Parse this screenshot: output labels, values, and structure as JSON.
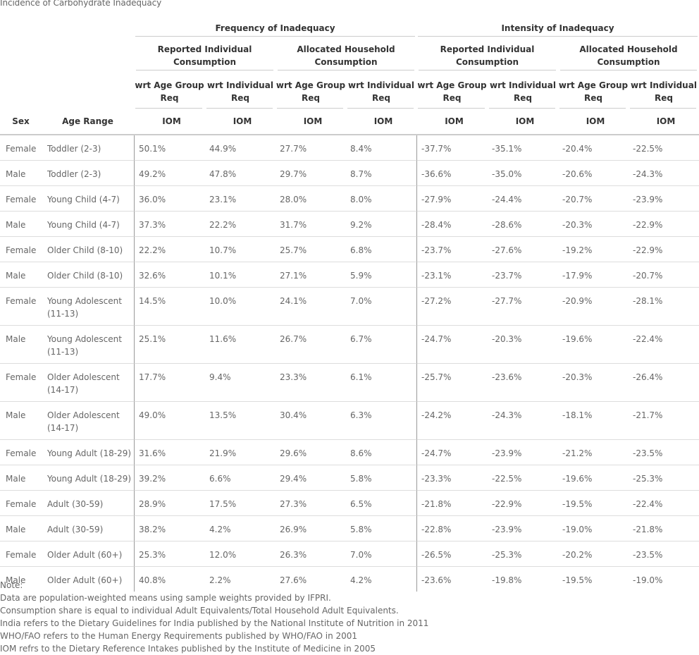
{
  "title": "Incidence of Carbohydrate Inadequacy",
  "header": {
    "group_frequency": "Frequency of Inadequacy",
    "group_intensity": "Intensity of Inadequacy",
    "sub_reported_1": "Reported Individual",
    "sub_reported_2": "Consumption",
    "sub_allocated_1": "Allocated Household",
    "sub_allocated_2": "Consumption",
    "req_age_1": "wrt Age Group",
    "req_age_2": "Req",
    "req_ind_1": "wrt Individual",
    "req_ind_2": "Req",
    "sex": "Sex",
    "age_range": "Age Range",
    "iom": "IOM"
  },
  "rows": [
    {
      "sex": "Female",
      "age": "Toddler (2-3)",
      "v": [
        "50.1%",
        "44.9%",
        "27.7%",
        "8.4%",
        "-37.7%",
        "-35.1%",
        "-20.4%",
        "-22.5%"
      ]
    },
    {
      "sex": "Male",
      "age": "Toddler (2-3)",
      "v": [
        "49.2%",
        "47.8%",
        "29.7%",
        "8.7%",
        "-36.6%",
        "-35.0%",
        "-20.6%",
        "-24.3%"
      ]
    },
    {
      "sex": "Female",
      "age": "Young Child (4-7)",
      "v": [
        "36.0%",
        "23.1%",
        "28.0%",
        "8.0%",
        "-27.9%",
        "-24.4%",
        "-20.7%",
        "-23.9%"
      ]
    },
    {
      "sex": "Male",
      "age": "Young Child (4-7)",
      "v": [
        "37.3%",
        "22.2%",
        "31.7%",
        "9.2%",
        "-28.4%",
        "-28.6%",
        "-20.3%",
        "-22.9%"
      ]
    },
    {
      "sex": "Female",
      "age": "Older Child (8-10)",
      "v": [
        "22.2%",
        "10.7%",
        "25.7%",
        "6.8%",
        "-23.7%",
        "-27.6%",
        "-19.2%",
        "-22.9%"
      ]
    },
    {
      "sex": "Male",
      "age": "Older Child (8-10)",
      "v": [
        "32.6%",
        "10.1%",
        "27.1%",
        "5.9%",
        "-23.1%",
        "-23.7%",
        "-17.9%",
        "-20.7%"
      ]
    },
    {
      "sex": "Female",
      "age": "Young Adolescent (11-13)",
      "v": [
        "14.5%",
        "10.0%",
        "24.1%",
        "7.0%",
        "-27.2%",
        "-27.7%",
        "-20.9%",
        "-28.1%"
      ]
    },
    {
      "sex": "Male",
      "age": "Young Adolescent (11-13)",
      "v": [
        "25.1%",
        "11.6%",
        "26.7%",
        "6.7%",
        "-24.7%",
        "-20.3%",
        "-19.6%",
        "-22.4%"
      ]
    },
    {
      "sex": "Female",
      "age": "Older Adolescent (14-17)",
      "v": [
        "17.7%",
        "9.4%",
        "23.3%",
        "6.1%",
        "-25.7%",
        "-23.6%",
        "-20.3%",
        "-26.4%"
      ]
    },
    {
      "sex": "Male",
      "age": "Older Adolescent (14-17)",
      "v": [
        "49.0%",
        "13.5%",
        "30.4%",
        "6.3%",
        "-24.2%",
        "-24.3%",
        "-18.1%",
        "-21.7%"
      ]
    },
    {
      "sex": "Female",
      "age": "Young Adult (18-29)",
      "v": [
        "31.6%",
        "21.9%",
        "29.6%",
        "8.6%",
        "-24.7%",
        "-23.9%",
        "-21.2%",
        "-23.5%"
      ]
    },
    {
      "sex": "Male",
      "age": "Young Adult (18-29)",
      "v": [
        "39.2%",
        "6.6%",
        "29.4%",
        "5.8%",
        "-23.3%",
        "-22.5%",
        "-19.6%",
        "-25.3%"
      ]
    },
    {
      "sex": "Female",
      "age": "Adult (30-59)",
      "v": [
        "28.9%",
        "17.5%",
        "27.3%",
        "6.5%",
        "-21.8%",
        "-22.9%",
        "-19.5%",
        "-22.4%"
      ]
    },
    {
      "sex": "Male",
      "age": "Adult (30-59)",
      "v": [
        "38.2%",
        "4.2%",
        "26.9%",
        "5.8%",
        "-22.8%",
        "-23.9%",
        "-19.0%",
        "-21.8%"
      ]
    },
    {
      "sex": "Female",
      "age": "Older Adult (60+)",
      "v": [
        "25.3%",
        "12.0%",
        "26.3%",
        "7.0%",
        "-26.5%",
        "-25.3%",
        "-20.2%",
        "-23.5%"
      ]
    },
    {
      "sex": "Male",
      "age": "Older Adult (60+)",
      "v": [
        "40.8%",
        "2.2%",
        "27.6%",
        "4.2%",
        "-23.6%",
        "-19.8%",
        "-19.5%",
        "-19.0%"
      ]
    }
  ],
  "notes": [
    "Note:",
    "Data are population-weighted means using sample weights provided by IFPRI.",
    "Consumption share is equal to individual Adult Equivalents/Total Household Adult Equivalents.",
    "India refers to the Dietary Guidelines for India published by the National Institute of Nutrition in 2011",
    "WHO/FAO refers to the Human Energy Requirements published by WHO/FAO in 2001",
    "IOM refrs to the Dietary Reference Intakes published by the Institute of Medicine in 2005"
  ]
}
